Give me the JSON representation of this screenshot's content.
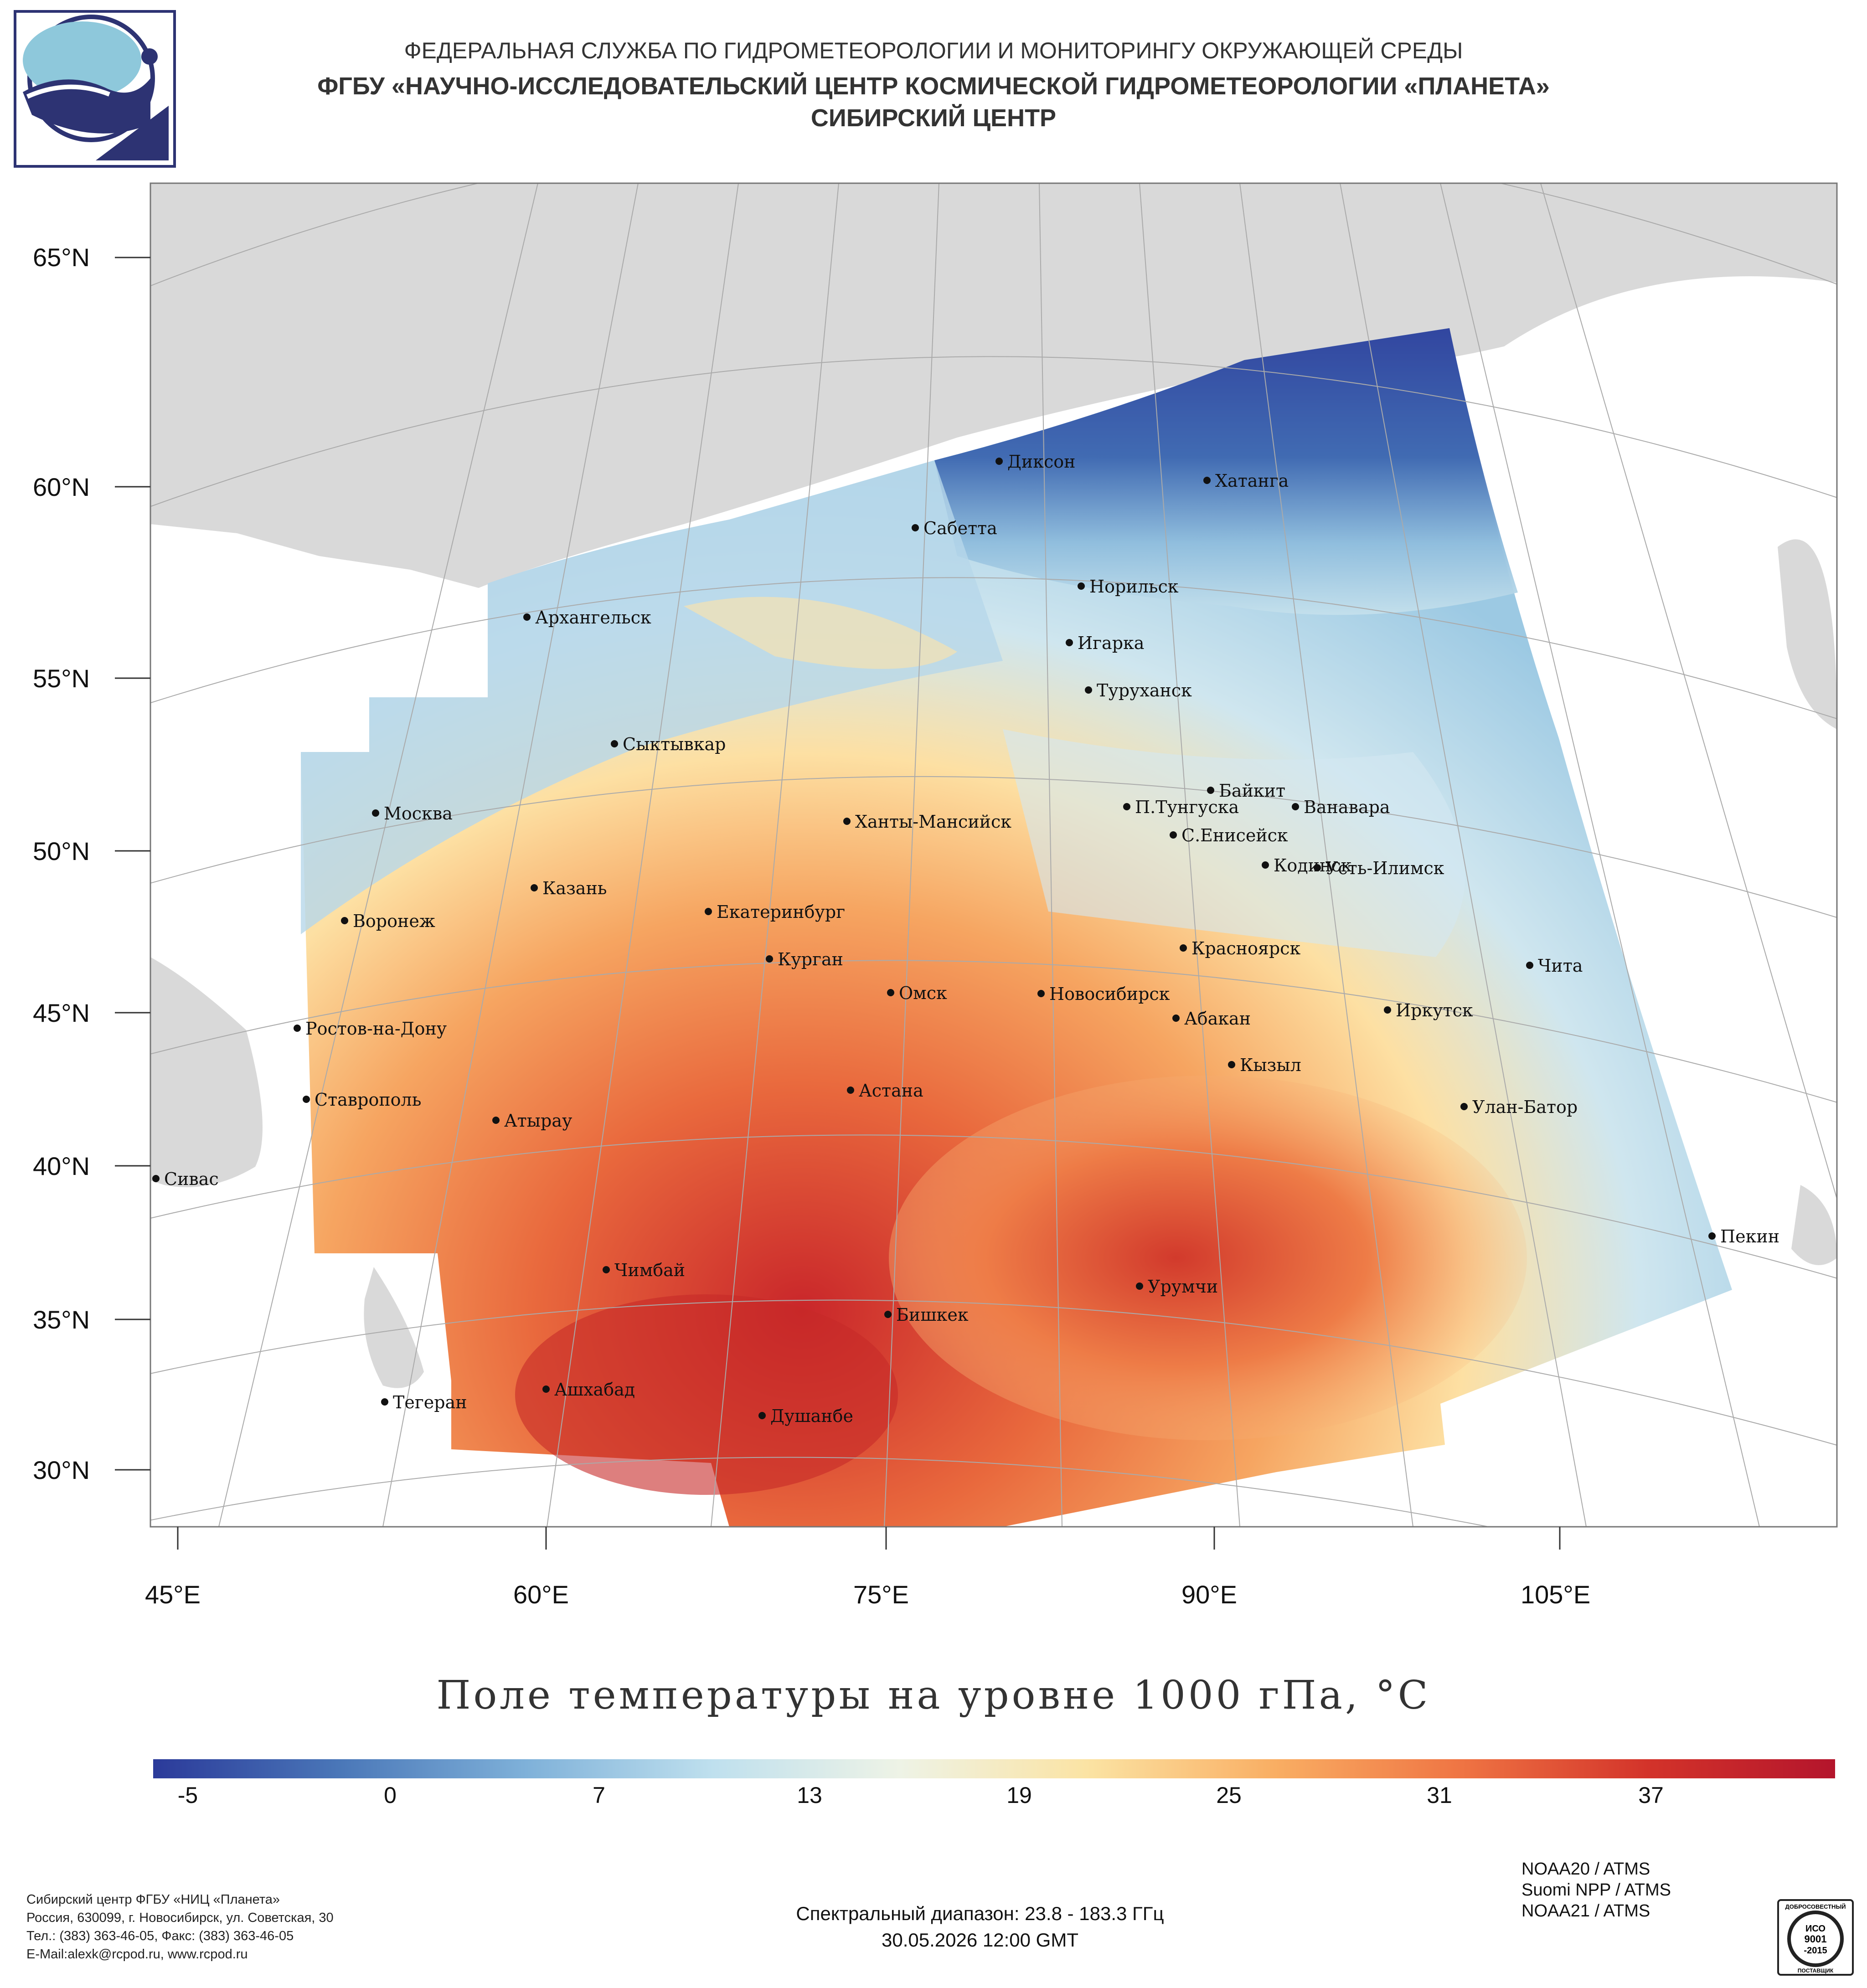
{
  "header": {
    "line1": "ФЕДЕРАЛЬНАЯ СЛУЖБА ПО ГИДРОМЕТЕОРОЛОГИИ И МОНИТОРИНГУ ОКРУЖАЮЩЕЙ СРЕДЫ",
    "line2": "ФГБУ «НАУЧНО-ИССЛЕДОВАТЕЛЬСКИЙ ЦЕНТР КОСМИЧЕСКОЙ ГИДРОМЕТЕОРОЛОГИИ «ПЛАНЕТА»",
    "line3": "СИБИРСКИЙ ЦЕНТР"
  },
  "map": {
    "title": "Поле температуры на уровне 1000 гПа, °C",
    "lat_labels": [
      "65°N",
      "60°N",
      "55°N",
      "50°N",
      "45°N",
      "40°N",
      "35°N",
      "30°N"
    ],
    "lon_labels": [
      "45°E",
      "60°E",
      "75°E",
      "90°E",
      "105°E"
    ],
    "cities": [
      {
        "name": "Диксон"
      },
      {
        "name": "Хатанга"
      },
      {
        "name": "Сабетта"
      },
      {
        "name": "Норильск"
      },
      {
        "name": "Архангельск"
      },
      {
        "name": "Игарка"
      },
      {
        "name": "Туруханск"
      },
      {
        "name": "Сыктывкар"
      },
      {
        "name": "Байкит"
      },
      {
        "name": "П.Тунгуска"
      },
      {
        "name": "Ванавара"
      },
      {
        "name": "Москва"
      },
      {
        "name": "Ханты-Мансийск"
      },
      {
        "name": "С.Енисейск"
      },
      {
        "name": "Кодинск"
      },
      {
        "name": "Усть-Илимск"
      },
      {
        "name": "Казань"
      },
      {
        "name": "Екатеринбург"
      },
      {
        "name": "Воронеж"
      },
      {
        "name": "Красноярск"
      },
      {
        "name": "Курган"
      },
      {
        "name": "Чита"
      },
      {
        "name": "Омск"
      },
      {
        "name": "Новосибирск"
      },
      {
        "name": "Иркутск"
      },
      {
        "name": "Абакан"
      },
      {
        "name": "Ростов-на-Дону"
      },
      {
        "name": "Кызыл"
      },
      {
        "name": "Ставрополь"
      },
      {
        "name": "Астана"
      },
      {
        "name": "Улан-Батор"
      },
      {
        "name": "Атырау"
      },
      {
        "name": "Сивас"
      },
      {
        "name": "Пекин"
      },
      {
        "name": "Чимбай"
      },
      {
        "name": "Урумчи"
      },
      {
        "name": "Бишкек"
      },
      {
        "name": "Ашхабад"
      },
      {
        "name": "Тегеран"
      },
      {
        "name": "Душанбе"
      }
    ]
  },
  "colorbar": {
    "ticks": [
      "-5",
      "0",
      "7",
      "13",
      "19",
      "25",
      "31",
      "37"
    ],
    "min": -6,
    "max": 43,
    "colors": [
      "#2b3a9a",
      "#4a77b8",
      "#7fb1d9",
      "#bfe0ee",
      "#eef3e6",
      "#fbe3a3",
      "#f9ae63",
      "#ef7443",
      "#d3332a",
      "#b4152c"
    ]
  },
  "footer": {
    "org_lines": [
      "Сибирский центр ФГБУ «НИЦ «Планета»",
      "Россия, 630099, г. Новосибирск, ул. Советская, 30",
      "Тел.: (383) 363-46-05, Факс: (383) 363-46-05",
      "E-Mail:alexk@rcpod.ru, www.rcpod.ru"
    ],
    "spectral": "Спектральный диапазон: 23.8 - 183.3 ГГц",
    "datetime": "30.05.2026 12:00 GMT",
    "satellites": [
      "NOAA20 / ATMS",
      "Suomi NPP / ATMS",
      "NOAA21 / ATMS"
    ],
    "iso_lines": [
      "ДОБРОСОВЕСТНЫЙ",
      "ИСО",
      "9001",
      "-2015",
      "ПОСТАВЩИК"
    ]
  }
}
